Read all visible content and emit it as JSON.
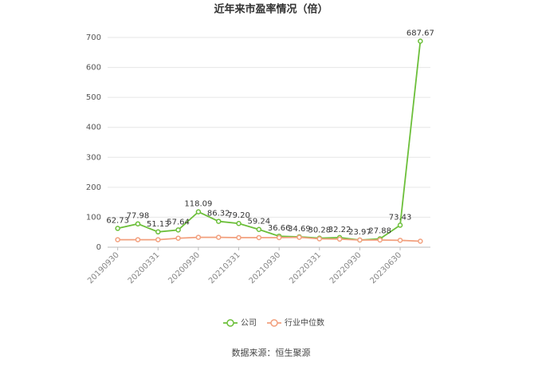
{
  "chart_data": {
    "type": "line",
    "title": "近年来市盈率情况（倍）",
    "categories": [
      "20190930",
      null,
      "20200331",
      null,
      "20200930",
      null,
      "20210331",
      null,
      "20210930",
      null,
      "20220331",
      null,
      "20220930",
      null,
      "20230630",
      null
    ],
    "series": [
      {
        "name": "公司",
        "color": "#6cbf3a",
        "values": [
          62.73,
          77.98,
          51.13,
          57.64,
          118.09,
          86.32,
          79.2,
          59.24,
          36.66,
          34.69,
          30.28,
          32.22,
          23.97,
          27.88,
          73.43,
          687.67
        ],
        "value_labels": [
          "62.73",
          "77.98",
          "51.13",
          "57.64",
          "118.09",
          "86.32",
          "79.20",
          "59.24",
          "36.66",
          "34.69",
          "30.28",
          "32.22",
          "23.97",
          "27.88",
          "73.43",
          "687.67"
        ]
      },
      {
        "name": "行业中位数",
        "color": "#f2a07e",
        "values": [
          25,
          25,
          25,
          30,
          33,
          33,
          32,
          32,
          32,
          33,
          28,
          27,
          24,
          24,
          23,
          20
        ]
      }
    ],
    "ylim": [
      0,
      700
    ],
    "yticks": [
      0,
      100,
      200,
      300,
      400,
      500,
      600,
      700
    ],
    "grid": true,
    "source": "数据来源：恒生聚源"
  }
}
